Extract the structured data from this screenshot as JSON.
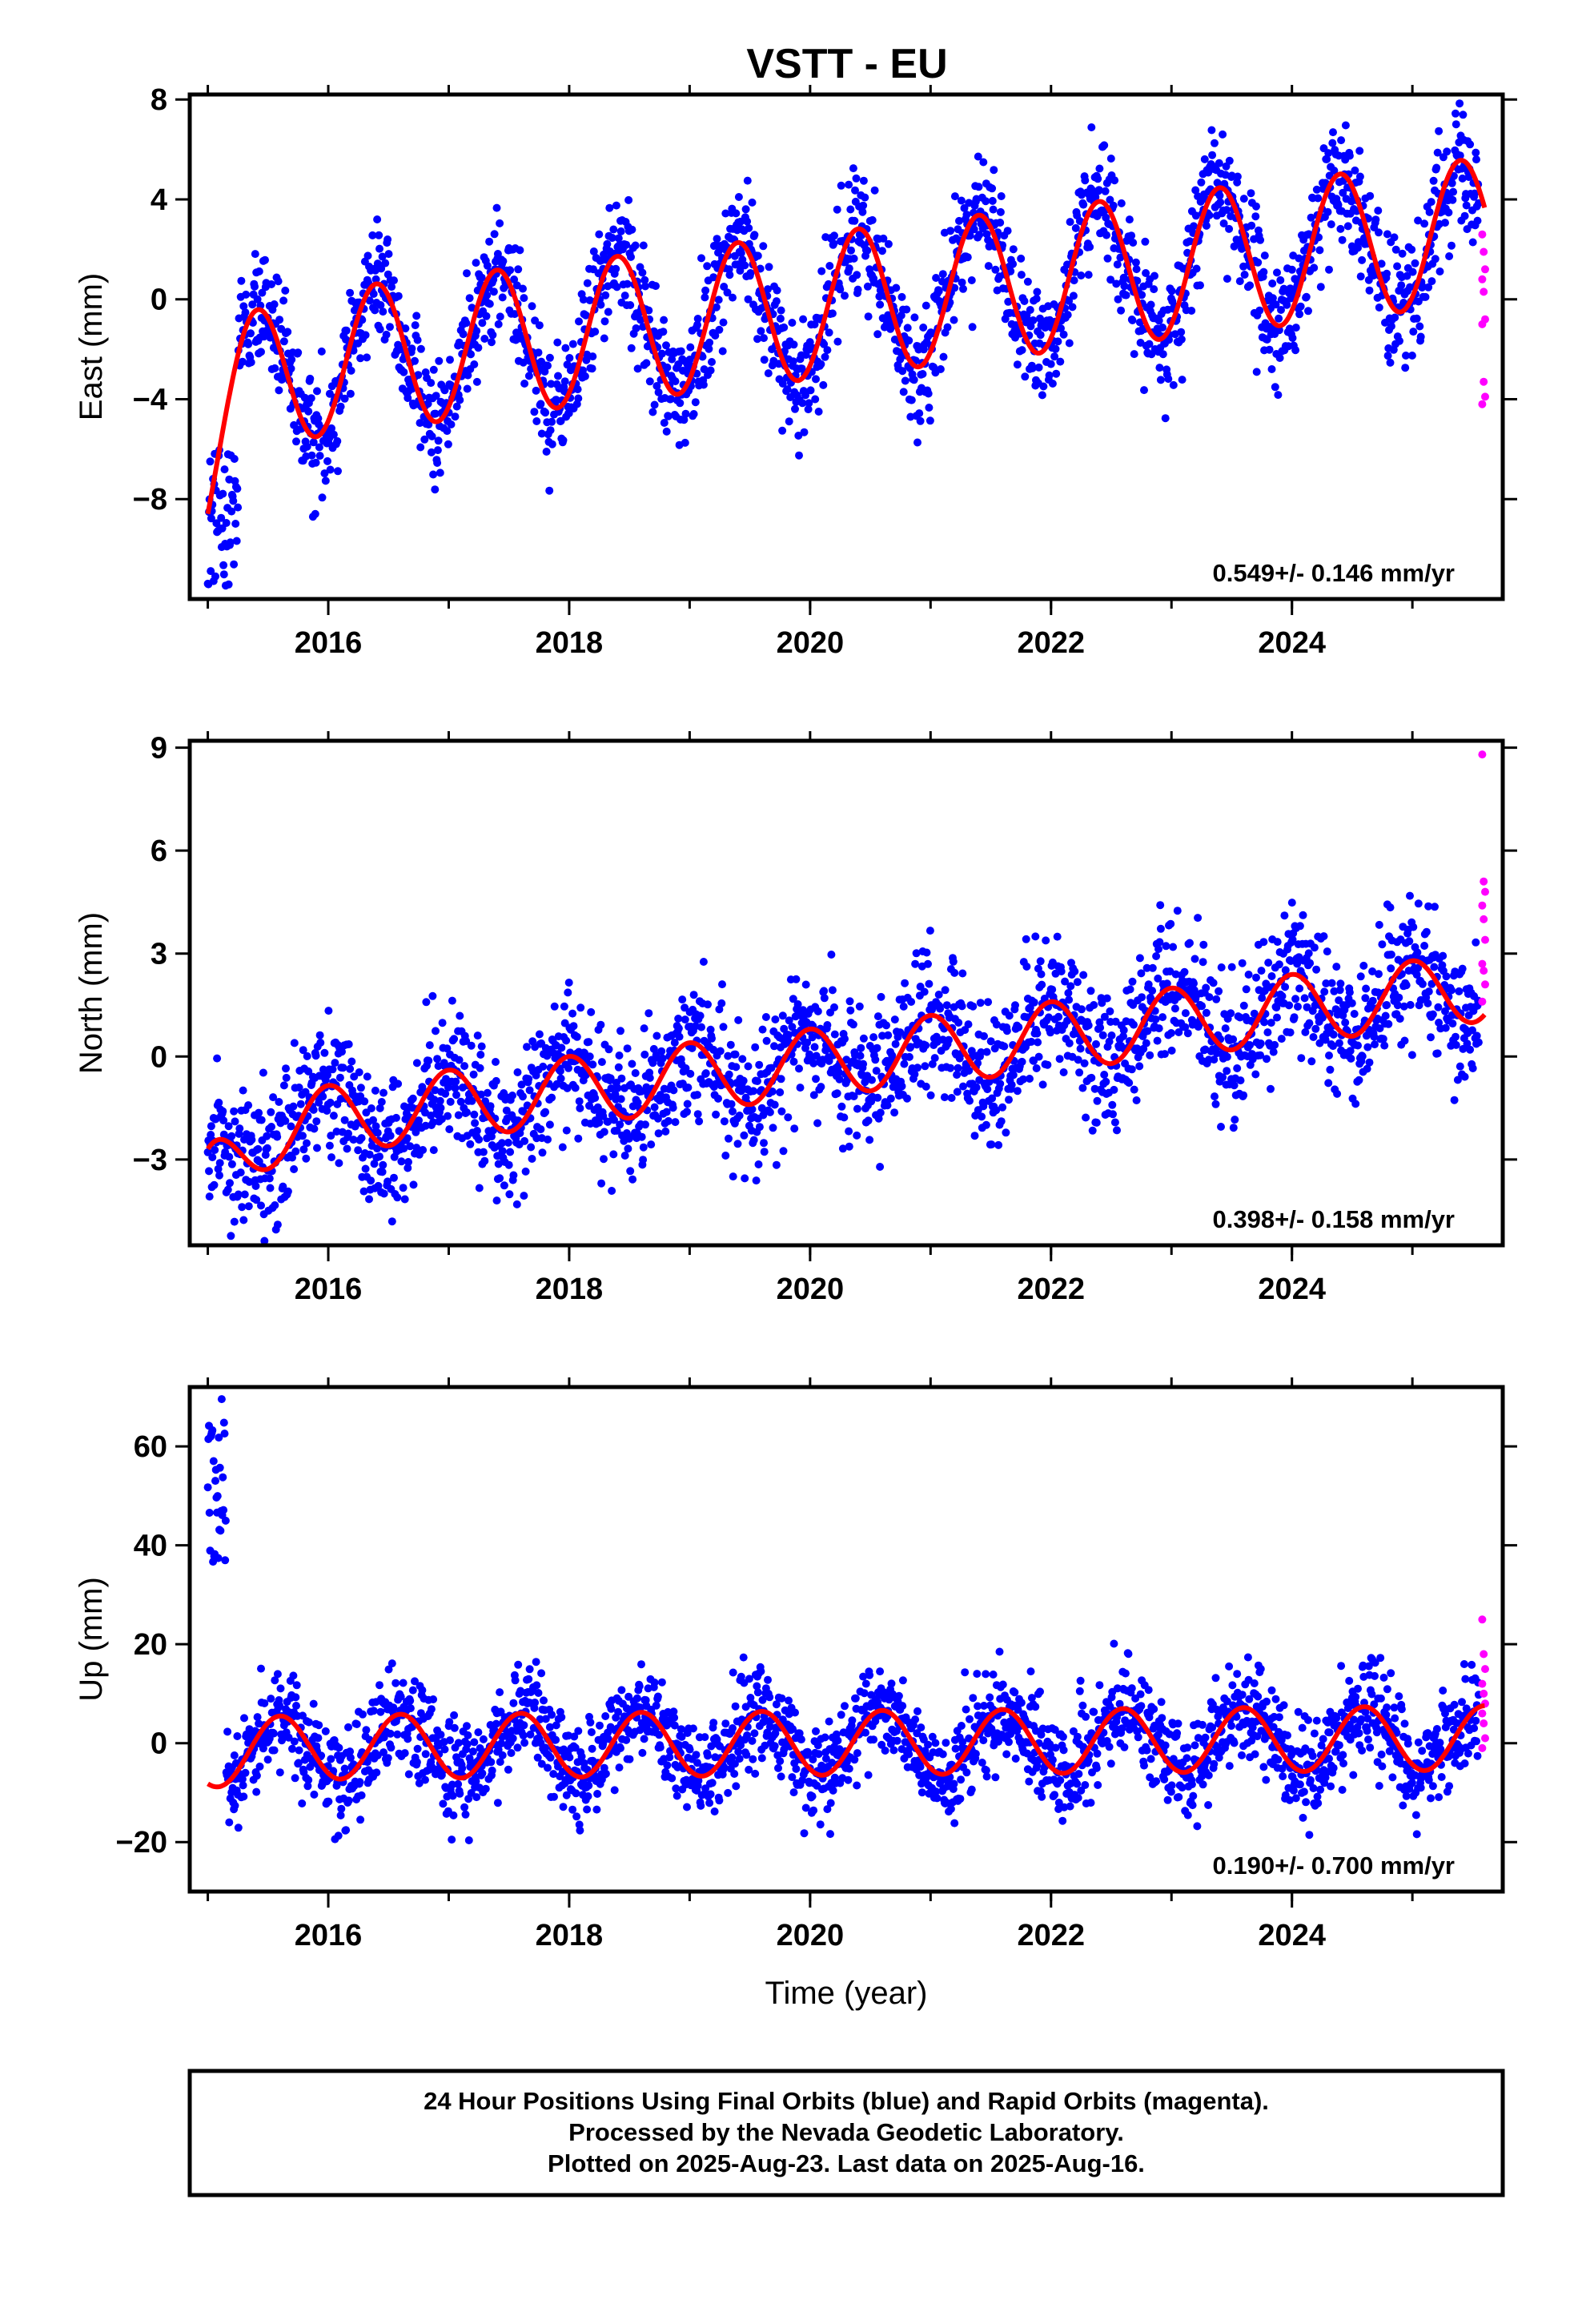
{
  "title": "VSTT - EU",
  "footer": {
    "line1": "24 Hour Positions Using Final Orbits (blue) and Rapid Orbits (magenta).",
    "line2": "Processed by the Nevada Geodetic Laboratory.",
    "line3": "Plotted on 2025-Aug-23. Last data on 2025-Aug-16."
  },
  "colors": {
    "final": "#0000ff",
    "rapid": "#ff00ff",
    "model": "#ff0000",
    "frame": "#000000"
  },
  "chart_data": [
    {
      "type": "scatter",
      "ylabel": "East (mm)",
      "xlabel": "",
      "xlim": [
        2014.85,
        2025.75
      ],
      "ylim": [
        -12,
        8.2
      ],
      "xticks": [
        2016,
        2018,
        2020,
        2022,
        2024
      ],
      "xtick_labels": [
        "2016",
        "2018",
        "2020",
        "2022",
        "2024"
      ],
      "yticks": [
        8,
        4,
        0,
        -4,
        -8
      ],
      "ytick_labels": [
        "8",
        "4",
        "0",
        "−4",
        "−8"
      ],
      "rate": "0.549+/- 0.146 mm/yr",
      "model": {
        "t0": 2020.0,
        "offset": -0.3,
        "rate": 0.549,
        "amplitude": 2.9,
        "peak_phase": 0.4,
        "start_dev": -3.2,
        "start_decay": 0.22
      },
      "scatter_sigma": 1.2,
      "early_segment": {
        "until": 2015.25,
        "values_from": -11.5,
        "values_to": -6
      },
      "rapid_values": [
        2.6,
        1.9,
        1.2,
        0.8,
        0.3,
        -0.8,
        -1.0,
        -3.3,
        -3.9,
        -4.2
      ]
    },
    {
      "type": "scatter",
      "ylabel": "North (mm)",
      "xlabel": "",
      "xlim": [
        2014.85,
        2025.75
      ],
      "ylim": [
        -5.5,
        9.2
      ],
      "xticks": [
        2016,
        2018,
        2020,
        2022,
        2024
      ],
      "xtick_labels": [
        "2016",
        "2018",
        "2020",
        "2022",
        "2024"
      ],
      "yticks": [
        9,
        6,
        3,
        0,
        -3
      ],
      "ytick_labels": [
        "9",
        "6",
        "3",
        "0",
        "−3"
      ],
      "rate": "0.398+/- 0.158 mm/yr",
      "model": {
        "t0": 2020.0,
        "offset": -0.2,
        "rate": 0.398,
        "amplitude": 1.0,
        "peak_phase": 0.0,
        "start_dev": -1.5,
        "start_decay": 0.3
      },
      "scatter_sigma": 1.0,
      "rapid_values": [
        8.8,
        5.1,
        4.8,
        4.4,
        4.0,
        3.4,
        2.7,
        2.5,
        2.1,
        1.6
      ]
    },
    {
      "type": "scatter",
      "ylabel": "Up (mm)",
      "xlabel": "Time (year)",
      "xlim": [
        2014.85,
        2025.75
      ],
      "ylim": [
        -30,
        72
      ],
      "xticks": [
        2016,
        2018,
        2020,
        2022,
        2024
      ],
      "xtick_labels": [
        "2016",
        "2018",
        "2020",
        "2022",
        "2024"
      ],
      "yticks": [
        60,
        40,
        20,
        0,
        -20
      ],
      "ytick_labels": [
        "60",
        "40",
        "20",
        "0",
        "−20"
      ],
      "rate": "0.190+/- 0.700 mm/yr",
      "model": {
        "t0": 2020.0,
        "offset": 0.0,
        "rate": 0.19,
        "amplitude": 6.5,
        "peak_phase": 0.6,
        "start_dev": -2.0,
        "start_decay": 0.25
      },
      "scatter_sigma": 5.0,
      "early_segment": {
        "until": 2015.15,
        "values_from": 36,
        "values_to": 70
      },
      "rapid_values": [
        25,
        18,
        15,
        12,
        10,
        8,
        6,
        4,
        1,
        -1
      ]
    }
  ]
}
